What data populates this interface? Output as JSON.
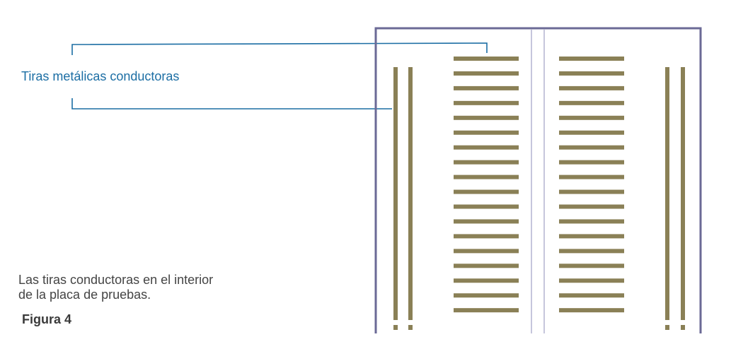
{
  "label": {
    "text": "Tiras metálicas conductoras"
  },
  "caption": {
    "line1": "Las tiras conductoras en el interior",
    "line2": "de la placa de pruebas."
  },
  "figure": {
    "label": "Figura 4"
  },
  "colors": {
    "label_text": "#1c6ea4",
    "caption_text": "#444444",
    "figure_label_text": "#3a3a3a",
    "board_border": "#6b6a96",
    "divider": "#8e8cb8",
    "strip": "#8a8056",
    "leader_line": "#1c6ea4"
  },
  "board": {
    "strip_rows_per_side": 18,
    "power_rail_pairs": 2
  }
}
